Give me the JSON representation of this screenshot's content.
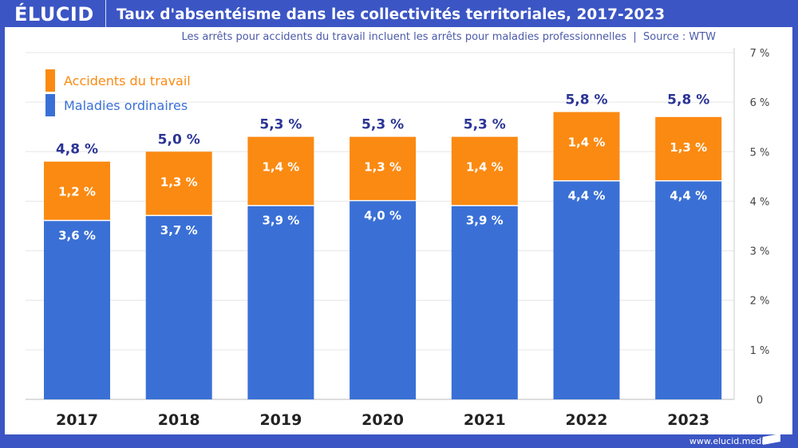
{
  "header": {
    "logo": "ÉLUCID",
    "title": "Taux d'absentéisme dans les collectivités territoriales, 2017-2023"
  },
  "subtitle": "Les arrêts pour accidents du travail incluent les arrêts pour maladies professionnelles  |  Source : WTW",
  "footer": "www.elucid.media",
  "chart_data": {
    "type": "bar",
    "stacked": true,
    "categories": [
      "2017",
      "2018",
      "2019",
      "2020",
      "2021",
      "2022",
      "2023"
    ],
    "series": [
      {
        "name": "Maladies ordinaires",
        "color": "#3a70d6",
        "values": [
          3.6,
          3.7,
          3.9,
          4.0,
          3.9,
          4.4,
          4.4
        ],
        "labels": [
          "3,6 %",
          "3,7 %",
          "3,9 %",
          "4,0 %",
          "3,9 %",
          "4,4 %",
          "4,4 %"
        ]
      },
      {
        "name": "Accidents du travail",
        "color": "#fb8a12",
        "values": [
          1.2,
          1.3,
          1.4,
          1.3,
          1.4,
          1.4,
          1.3
        ],
        "labels": [
          "1,2 %",
          "1,3 %",
          "1,4 %",
          "1,3 %",
          "1,4 %",
          "1,4 %",
          "1,3 %"
        ]
      }
    ],
    "totals": [
      "4,8 %",
      "5,0 %",
      "5,3 %",
      "5,3 %",
      "5,3 %",
      "5,8 %",
      "5,8 %"
    ],
    "total_values": [
      4.8,
      5.0,
      5.3,
      5.3,
      5.3,
      5.8,
      5.8
    ],
    "yticks": [
      "0",
      "1 %",
      "2 %",
      "3 %",
      "4 %",
      "5 %",
      "6 %",
      "7 %"
    ],
    "ylim": [
      0,
      7
    ],
    "grid": true,
    "legend": "top-left",
    "yaxis_side": "right"
  }
}
